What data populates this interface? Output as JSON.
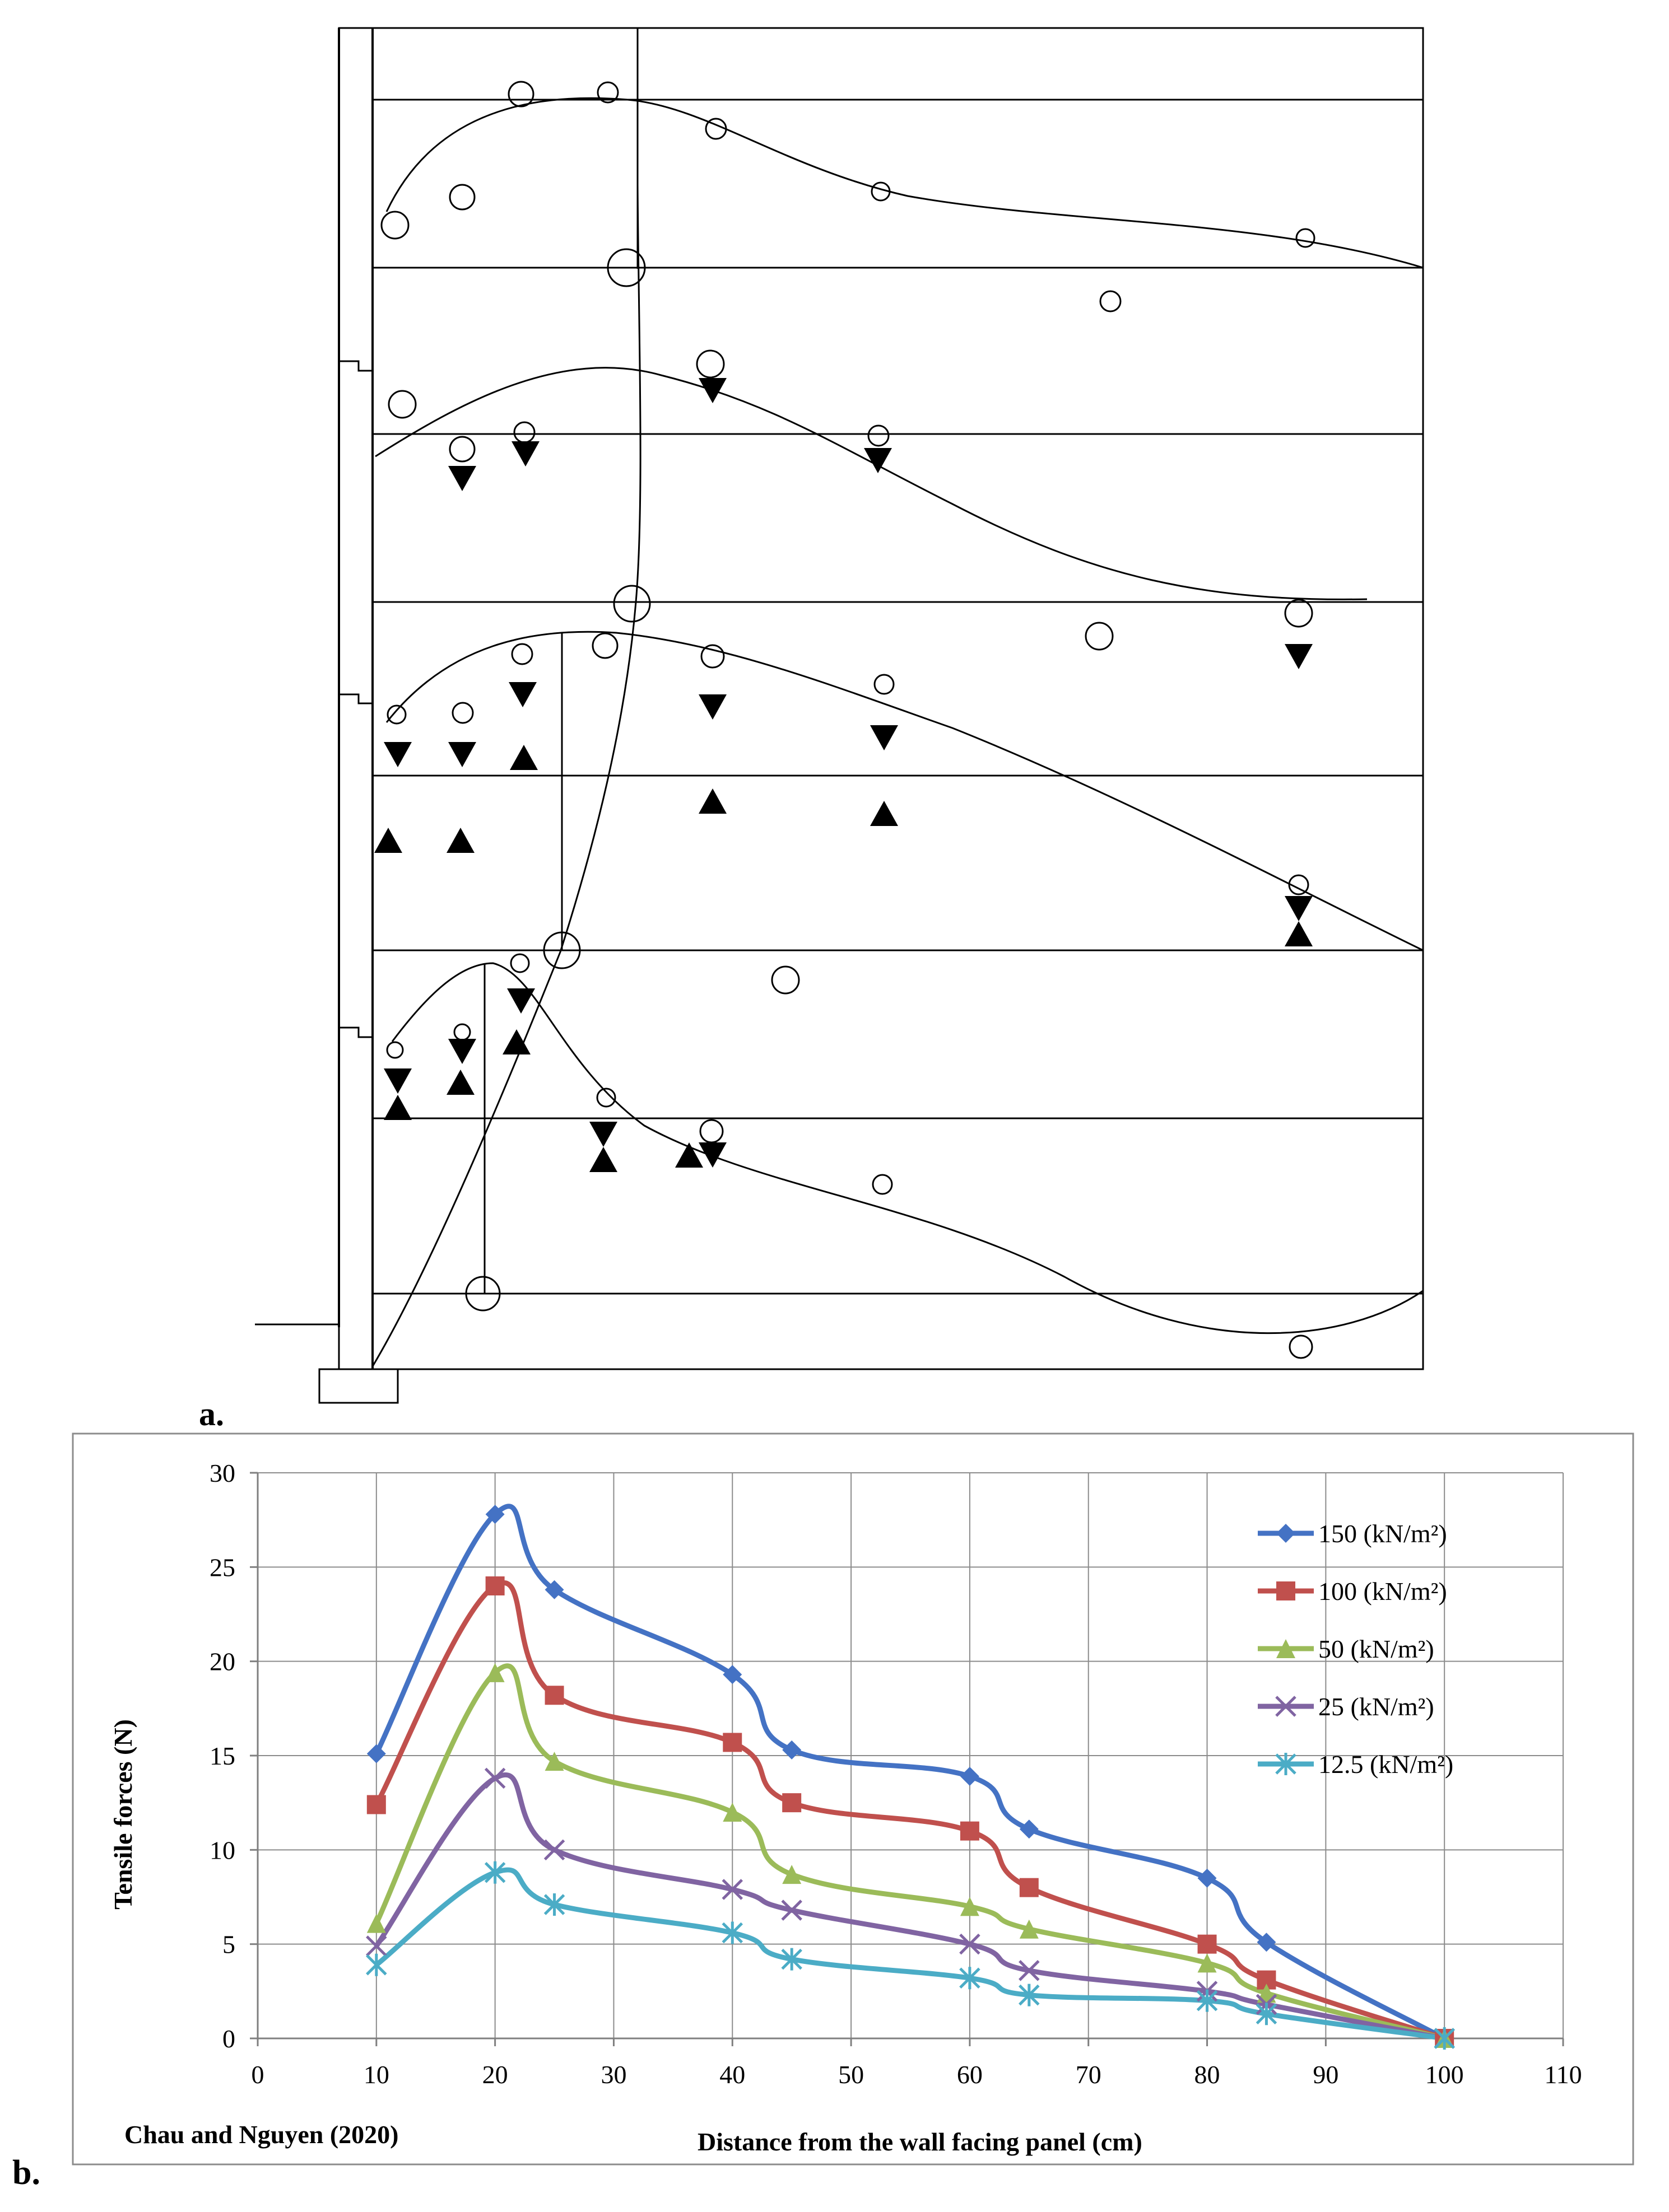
{
  "panel_a": {
    "label": "a.",
    "markers": {
      "open": "measured-circle",
      "down": "triangle-down",
      "up": "triangle-up"
    }
  },
  "panel_b": {
    "label": "b.",
    "citation": "Chau and Nguyen (2020)"
  },
  "chart_data": {
    "type": "line",
    "title": "",
    "xlabel": "Distance from the wall facing panel (cm)",
    "ylabel": "Tensile forces (N)",
    "xlim": [
      0,
      110
    ],
    "ylim": [
      0,
      30
    ],
    "xticks": [
      0,
      10,
      20,
      30,
      40,
      50,
      60,
      70,
      80,
      90,
      100,
      110
    ],
    "yticks": [
      0,
      5,
      10,
      15,
      20,
      25,
      30
    ],
    "grid": true,
    "legend_position": "top-right",
    "x": [
      10,
      20,
      25,
      40,
      45,
      60,
      65,
      80,
      85,
      100
    ],
    "series": [
      {
        "name": "150 (kN/m²)",
        "color": "#4472C4",
        "marker": "diamond",
        "values": [
          15.1,
          27.8,
          23.8,
          19.3,
          15.3,
          13.9,
          11.1,
          8.5,
          5.1,
          0
        ]
      },
      {
        "name": "100 (kN/m²)",
        "color": "#C0504D",
        "marker": "square",
        "values": [
          12.4,
          24.0,
          18.2,
          15.7,
          12.5,
          11.0,
          8.0,
          5.0,
          3.1,
          0
        ]
      },
      {
        "name": "50 (kN/m²)",
        "color": "#9BBB59",
        "marker": "triangle",
        "values": [
          6.1,
          19.4,
          14.7,
          12.0,
          8.7,
          7.0,
          5.8,
          4.0,
          2.4,
          0
        ]
      },
      {
        "name": "25 (kN/m²)",
        "color": "#8064A2",
        "marker": "x",
        "values": [
          4.9,
          13.8,
          10.0,
          7.9,
          6.8,
          5.0,
          3.6,
          2.5,
          1.8,
          0
        ]
      },
      {
        "name": "12.5 (kN/m²)",
        "color": "#4BACC6",
        "marker": "star",
        "values": [
          3.9,
          8.8,
          7.1,
          5.6,
          4.2,
          3.2,
          2.3,
          2.0,
          1.3,
          0
        ]
      }
    ]
  }
}
